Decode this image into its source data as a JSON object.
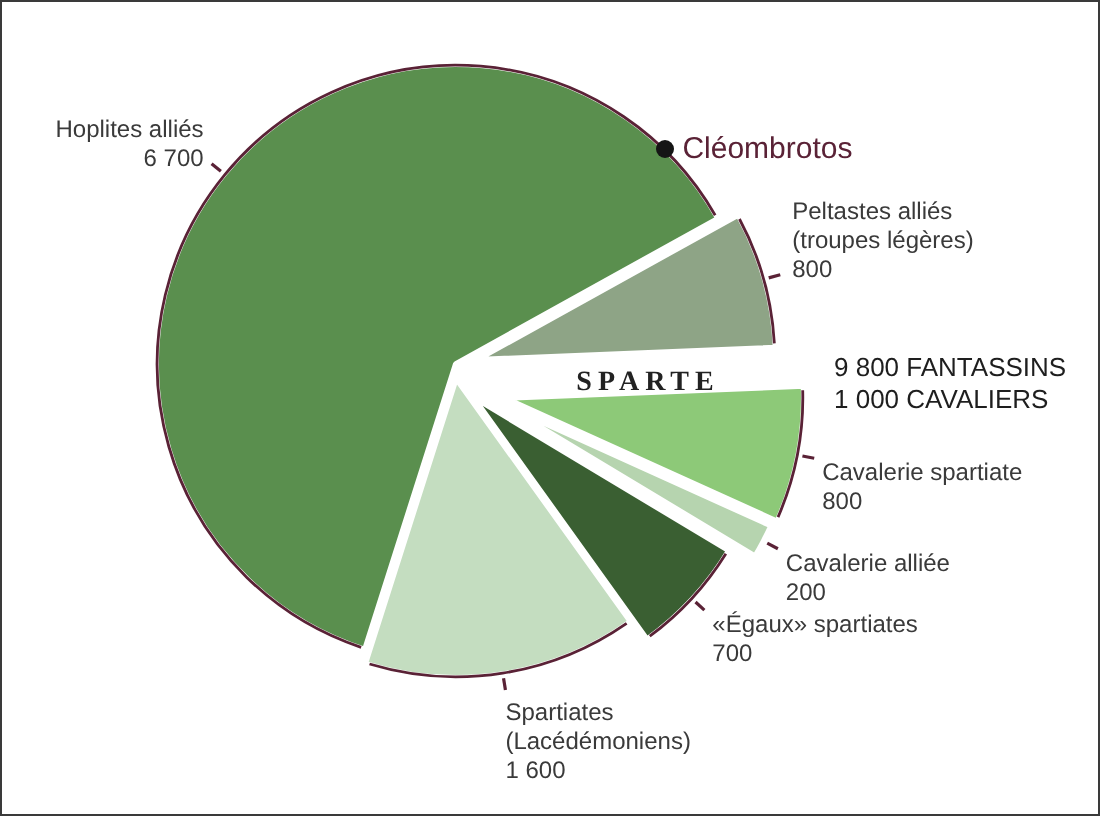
{
  "chart_data": {
    "type": "pie",
    "categories": [
      "Hoplites alliés",
      "Peltastes alliés\n(troupes légères)",
      "Cavalerie spartiate",
      "Cavalerie alliée",
      "«Égaux» spartiates",
      "Spartiates\n(Lacédémoniens)"
    ],
    "values": [
      6700,
      800,
      800,
      200,
      700,
      1600
    ],
    "colors": [
      "#5a8f4e",
      "#8ea486",
      "#8dc978",
      "#b6d4af",
      "#3a5f32",
      "#c4ddc0"
    ],
    "value_labels": [
      "6 700",
      "800",
      "800",
      "200",
      "700",
      "1 600"
    ],
    "annotations": [
      "Cléombrotos",
      "SPARTE",
      "9 800 FANTASSINS\n1 000 CAVALIERS"
    ]
  }
}
